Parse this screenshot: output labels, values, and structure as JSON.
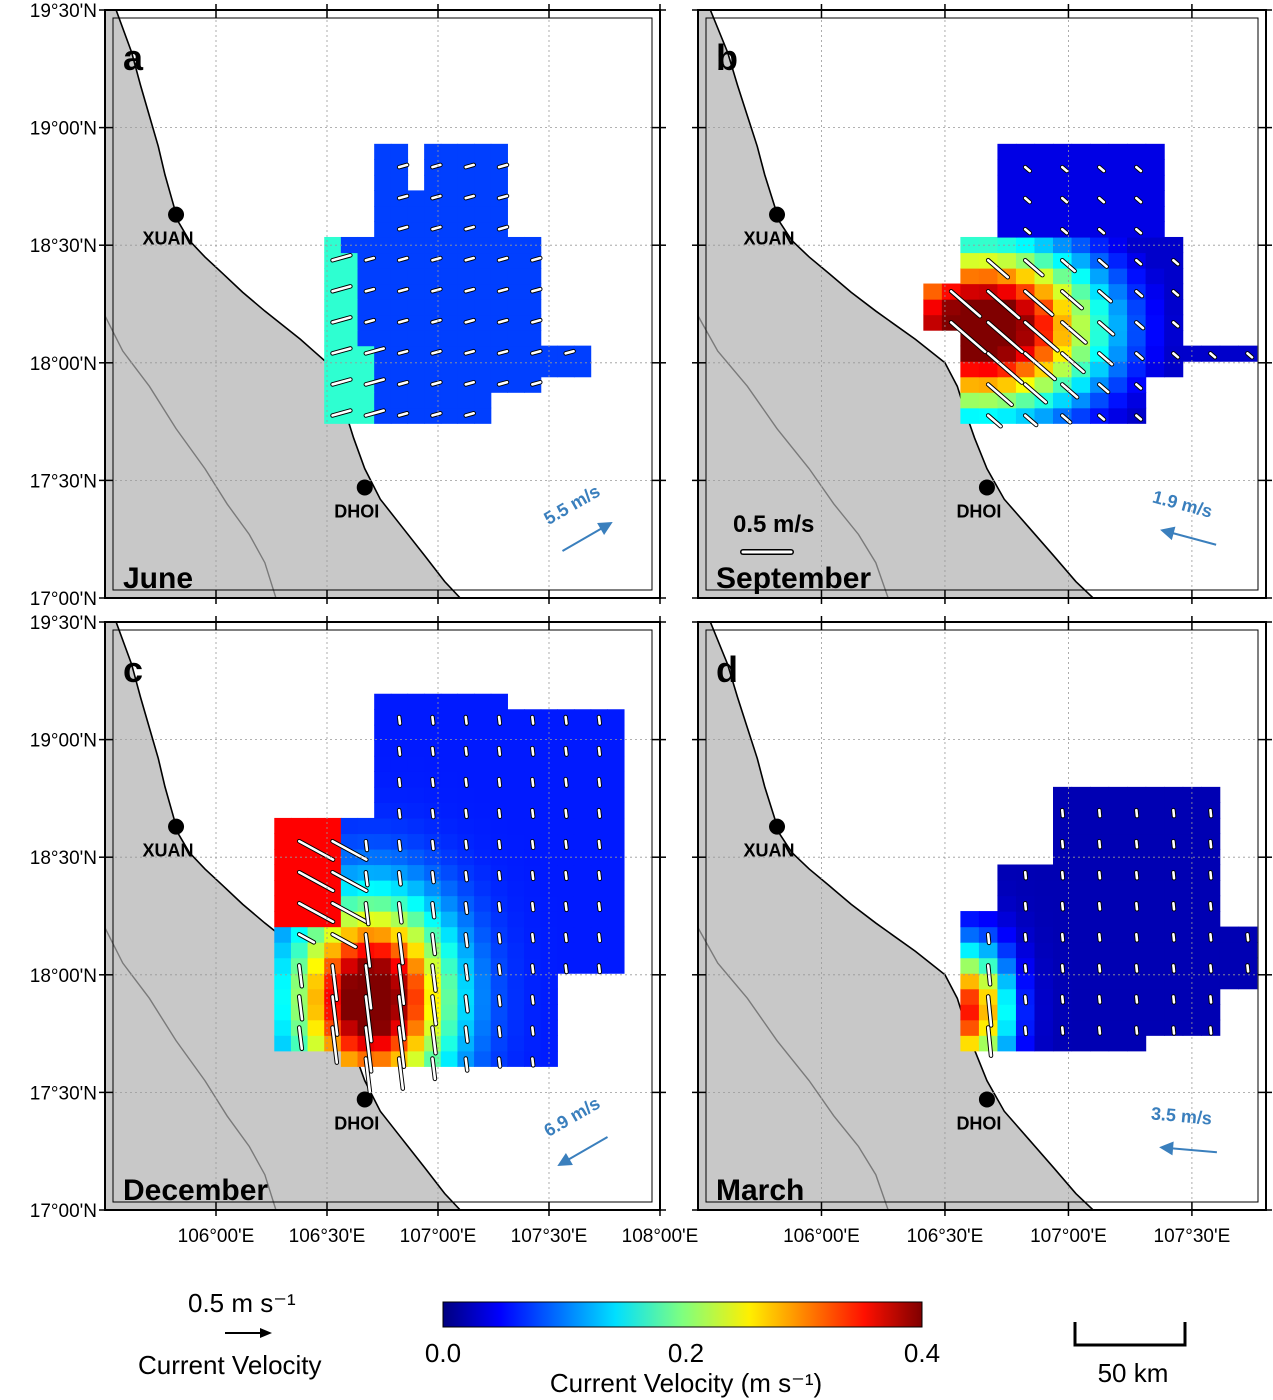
{
  "panels": [
    {
      "letter": "a",
      "month": "June",
      "wind": {
        "speed_label": "5.5 m/s",
        "dir_deg": 30
      },
      "field": {
        "type": "june"
      },
      "show_lon_labels": false,
      "show_lat_labels": true
    },
    {
      "letter": "b",
      "month": "September",
      "wind": {
        "speed_label": "1.9 m/s",
        "dir_deg": 165
      },
      "field": {
        "type": "september"
      },
      "reference_arrow_label": "0.5 m/s",
      "show_lon_labels": false,
      "show_lat_labels": false
    },
    {
      "letter": "c",
      "month": "December",
      "wind": {
        "speed_label": "6.9 m/s",
        "dir_deg": 210
      },
      "field": {
        "type": "december"
      },
      "show_lon_labels": true,
      "show_lat_labels": true
    },
    {
      "letter": "d",
      "month": "March",
      "wind": {
        "speed_label": "3.5 m/s",
        "dir_deg": 175
      },
      "field": {
        "type": "march"
      },
      "show_lon_labels": true,
      "show_lat_labels": false
    }
  ],
  "cities": [
    {
      "name": "XUAN",
      "lon": 105.82,
      "lat": 18.63
    },
    {
      "name": "DHOI",
      "lon": 106.67,
      "lat": 17.47
    }
  ],
  "map": {
    "lon_range": [
      105.5,
      108.0
    ],
    "lat_range": [
      17.0,
      19.5
    ],
    "lat_ticks": [
      {
        "value": 19.5,
        "label": "19°30'N"
      },
      {
        "value": 19.0,
        "label": "19°00'N"
      },
      {
        "value": 18.5,
        "label": "18°30'N"
      },
      {
        "value": 18.0,
        "label": "18°00'N"
      },
      {
        "value": 17.5,
        "label": "17°30'N"
      },
      {
        "value": 17.0,
        "label": "17°00'N"
      }
    ],
    "lon_ticks_left": [
      {
        "value": 106.0,
        "label": "106°00'E"
      },
      {
        "value": 106.5,
        "label": "106°30'E"
      },
      {
        "value": 107.0,
        "label": "107°00'E"
      },
      {
        "value": 107.5,
        "label": "107°30'E"
      },
      {
        "value": 108.0,
        "label": "108°00'E"
      }
    ],
    "lon_ticks_right": [
      {
        "value": 106.0,
        "label": "106°00'E"
      },
      {
        "value": 106.5,
        "label": "106°30'E"
      },
      {
        "value": 107.0,
        "label": "107°00'E"
      },
      {
        "value": 107.5,
        "label": "107°30'E"
      }
    ],
    "land_color": "#c8c8c8",
    "grid": true
  },
  "legend": {
    "vector_scale_label": "0.5 m s⁻¹",
    "vector_caption": "Current Velocity",
    "colorbar_min_label": "0.0",
    "colorbar_mid_label": "0.2",
    "colorbar_max_label": "0.4",
    "colorbar_caption": "Current Velocity (m s⁻¹)",
    "colorbar_range": [
      0.0,
      0.4
    ],
    "colormap": "jet",
    "scalebar_label": "50 km"
  }
}
